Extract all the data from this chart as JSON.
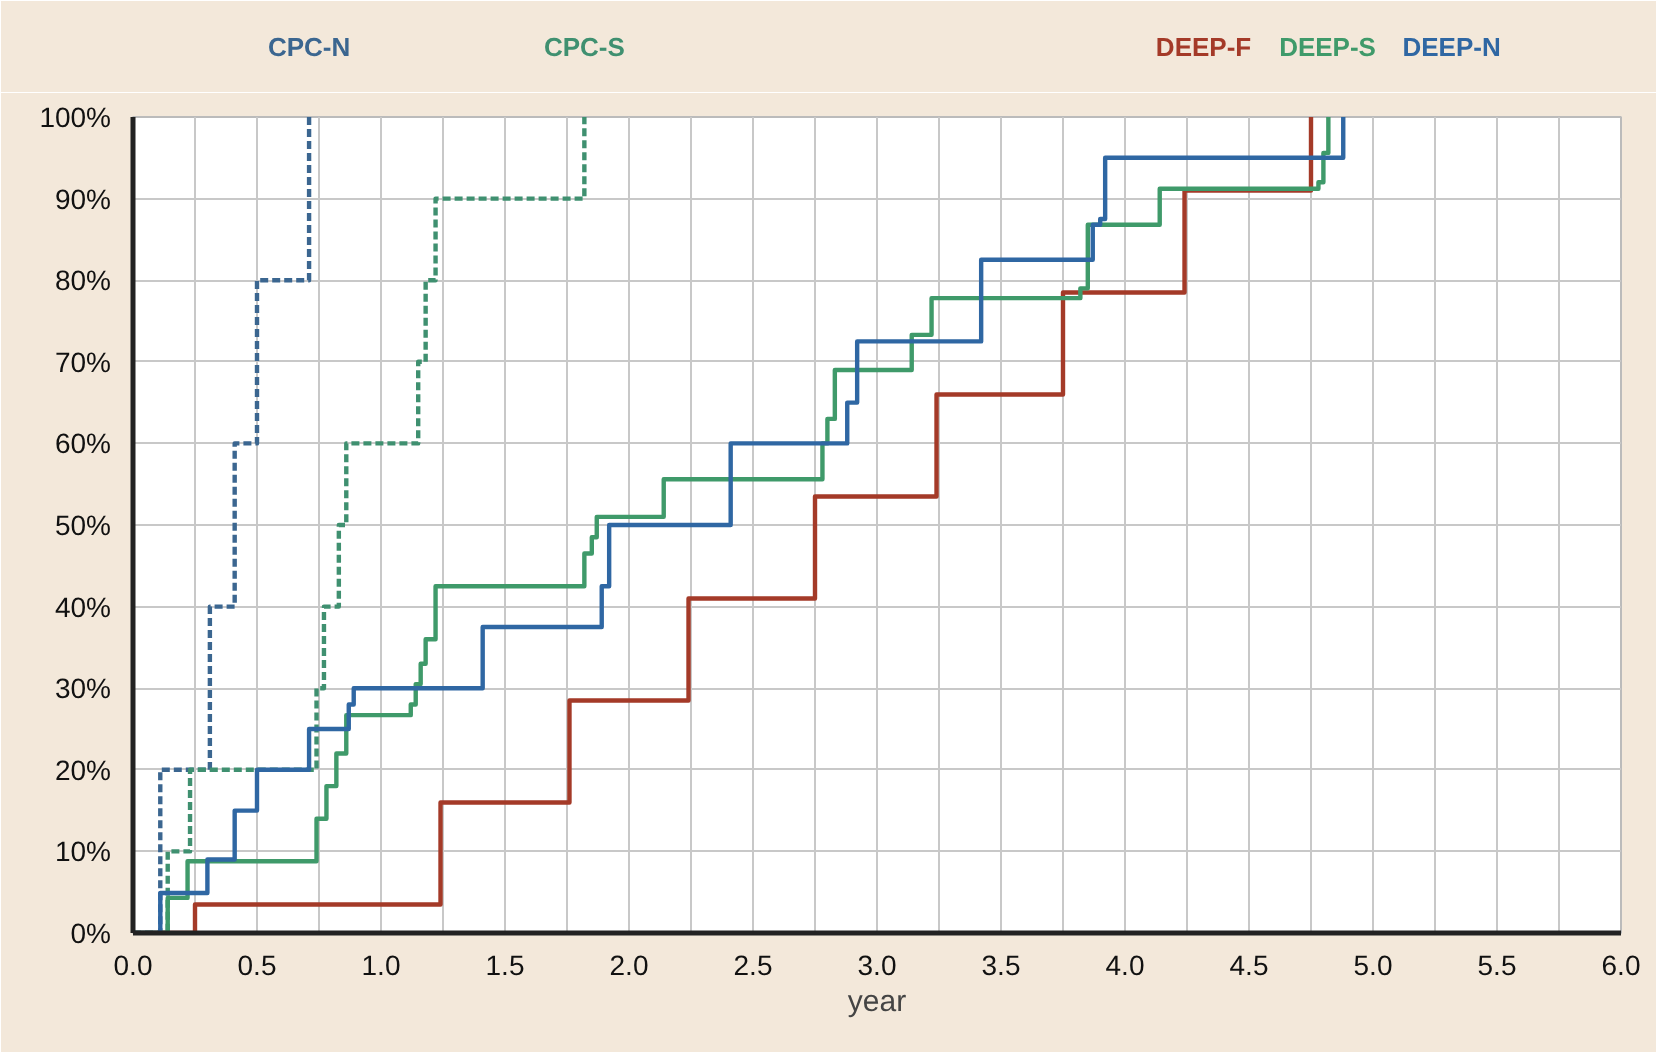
{
  "chart_data": {
    "type": "step",
    "xlabel": "year",
    "xlim": [
      0,
      6
    ],
    "ylim": [
      0,
      100
    ],
    "xticks": [
      {
        "value": 0,
        "label": "0.0"
      },
      {
        "value": 0.25,
        "label": null
      },
      {
        "value": 0.5,
        "label": "0.5"
      },
      {
        "value": 0.75,
        "label": null
      },
      {
        "value": 1,
        "label": "1.0"
      },
      {
        "value": 1.25,
        "label": null
      },
      {
        "value": 1.5,
        "label": "1.5"
      },
      {
        "value": 1.75,
        "label": null
      },
      {
        "value": 2,
        "label": "2.0"
      },
      {
        "value": 2.25,
        "label": null
      },
      {
        "value": 2.5,
        "label": "2.5"
      },
      {
        "value": 2.75,
        "label": null
      },
      {
        "value": 3,
        "label": "3.0"
      },
      {
        "value": 3.25,
        "label": null
      },
      {
        "value": 3.5,
        "label": "3.5"
      },
      {
        "value": 3.75,
        "label": null
      },
      {
        "value": 4,
        "label": "4.0"
      },
      {
        "value": 4.25,
        "label": null
      },
      {
        "value": 4.5,
        "label": "4.5"
      },
      {
        "value": 4.75,
        "label": null
      },
      {
        "value": 5,
        "label": "5.0"
      },
      {
        "value": 5.25,
        "label": null
      },
      {
        "value": 5.5,
        "label": "5.5"
      },
      {
        "value": 5.75,
        "label": null
      },
      {
        "value": 6,
        "label": "6.0"
      }
    ],
    "yticks": [
      {
        "value": 0,
        "label": "0%"
      },
      {
        "value": 10,
        "label": "10%"
      },
      {
        "value": 20,
        "label": "20%"
      },
      {
        "value": 30,
        "label": "30%"
      },
      {
        "value": 40,
        "label": "40%"
      },
      {
        "value": 50,
        "label": "50%"
      },
      {
        "value": 60,
        "label": "60%"
      },
      {
        "value": 70,
        "label": "70%"
      },
      {
        "value": 80,
        "label": "80%"
      },
      {
        "value": 90,
        "label": "90%"
      },
      {
        "value": 100,
        "label": "100%"
      }
    ],
    "grid": true,
    "series": [
      {
        "name": "CPC-N",
        "color": "#3b6690",
        "line_style": "dashed",
        "x": [
          0,
          0.11,
          0.31,
          0.41,
          0.5,
          0.71
        ],
        "values": [
          0,
          20,
          40,
          60,
          80,
          100
        ]
      },
      {
        "name": "CPC-S",
        "color": "#3f9070",
        "line_style": "dashed",
        "x": [
          0,
          0.14,
          0.23,
          0.74,
          0.77,
          0.83,
          0.86,
          1.15,
          1.18,
          1.22,
          1.82
        ],
        "values": [
          0,
          10,
          20,
          30,
          40,
          50,
          60,
          70,
          80,
          90,
          100
        ]
      },
      {
        "name": "DEEP-F",
        "color": "#a43a28",
        "line_style": "solid",
        "x": [
          0,
          0.25,
          1.24,
          1.76,
          2.24,
          2.75,
          3.24,
          3.75,
          4.24,
          4.75
        ],
        "values": [
          0,
          3.5,
          16,
          28.5,
          41,
          53.5,
          66,
          78.5,
          91,
          100
        ]
      },
      {
        "name": "DEEP-S",
        "color": "#3f9a6a",
        "line_style": "solid",
        "x": [
          0,
          0.14,
          0.22,
          0.74,
          0.78,
          0.82,
          0.86,
          1.12,
          1.14,
          1.16,
          1.18,
          1.22,
          1.82,
          1.85,
          1.87,
          2.14,
          2.78,
          2.8,
          2.83,
          3.14,
          3.22,
          3.82,
          3.85,
          4.14,
          4.78,
          4.8,
          4.82
        ],
        "values": [
          0,
          4.3,
          8.8,
          14,
          18,
          22,
          26.7,
          28,
          30.5,
          33,
          36,
          42.5,
          46.5,
          48.5,
          51,
          55.6,
          60,
          63,
          69,
          73.3,
          77.8,
          79,
          86.8,
          91.2,
          92,
          95.6,
          100
        ]
      },
      {
        "name": "DEEP-N",
        "color": "#2f67a3",
        "line_style": "solid",
        "x": [
          0,
          0.11,
          0.3,
          0.41,
          0.5,
          0.71,
          0.87,
          0.89,
          1.41,
          1.89,
          1.92,
          2.41,
          2.88,
          2.92,
          3.42,
          3.87,
          3.9,
          3.92,
          4.88
        ],
        "values": [
          0,
          4.9,
          9,
          15,
          20,
          25,
          28,
          30,
          37.5,
          42.5,
          50,
          60,
          65,
          72.5,
          82.5,
          86.8,
          87.5,
          95,
          100
        ]
      }
    ]
  }
}
